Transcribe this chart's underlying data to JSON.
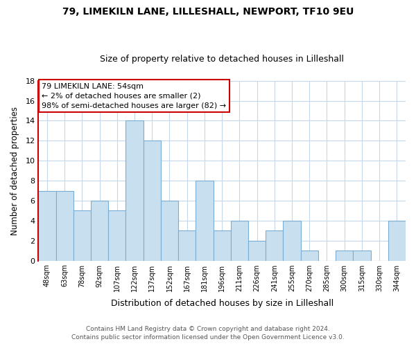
{
  "title": "79, LIMEKILN LANE, LILLESHALL, NEWPORT, TF10 9EU",
  "subtitle": "Size of property relative to detached houses in Lilleshall",
  "xlabel": "Distribution of detached houses by size in Lilleshall",
  "ylabel": "Number of detached properties",
  "footer_line1": "Contains HM Land Registry data © Crown copyright and database right 2024.",
  "footer_line2": "Contains public sector information licensed under the Open Government Licence v3.0.",
  "annotation_title": "79 LIMEKILN LANE: 54sqm",
  "annotation_line1": "← 2% of detached houses are smaller (2)",
  "annotation_line2": "98% of semi-detached houses are larger (82) →",
  "bar_labels": [
    "48sqm",
    "63sqm",
    "78sqm",
    "92sqm",
    "107sqm",
    "122sqm",
    "137sqm",
    "152sqm",
    "167sqm",
    "181sqm",
    "196sqm",
    "211sqm",
    "226sqm",
    "241sqm",
    "255sqm",
    "270sqm",
    "285sqm",
    "300sqm",
    "315sqm",
    "330sqm",
    "344sqm"
  ],
  "bar_values": [
    7,
    7,
    5,
    6,
    5,
    14,
    12,
    6,
    3,
    8,
    3,
    4,
    2,
    3,
    4,
    1,
    0,
    1,
    1,
    0,
    4
  ],
  "bar_color": "#c8dff0",
  "bar_edge_color": "#7aadd4",
  "annotation_box_color": "#ffffff",
  "annotation_box_edge_color": "#cc0000",
  "background_color": "#ffffff",
  "grid_color": "#c5d8eb",
  "ylim": [
    0,
    18
  ],
  "yticks": [
    0,
    2,
    4,
    6,
    8,
    10,
    12,
    14,
    16,
    18
  ],
  "red_line_color": "#cc0000",
  "title_fontsize": 10,
  "subtitle_fontsize": 9
}
